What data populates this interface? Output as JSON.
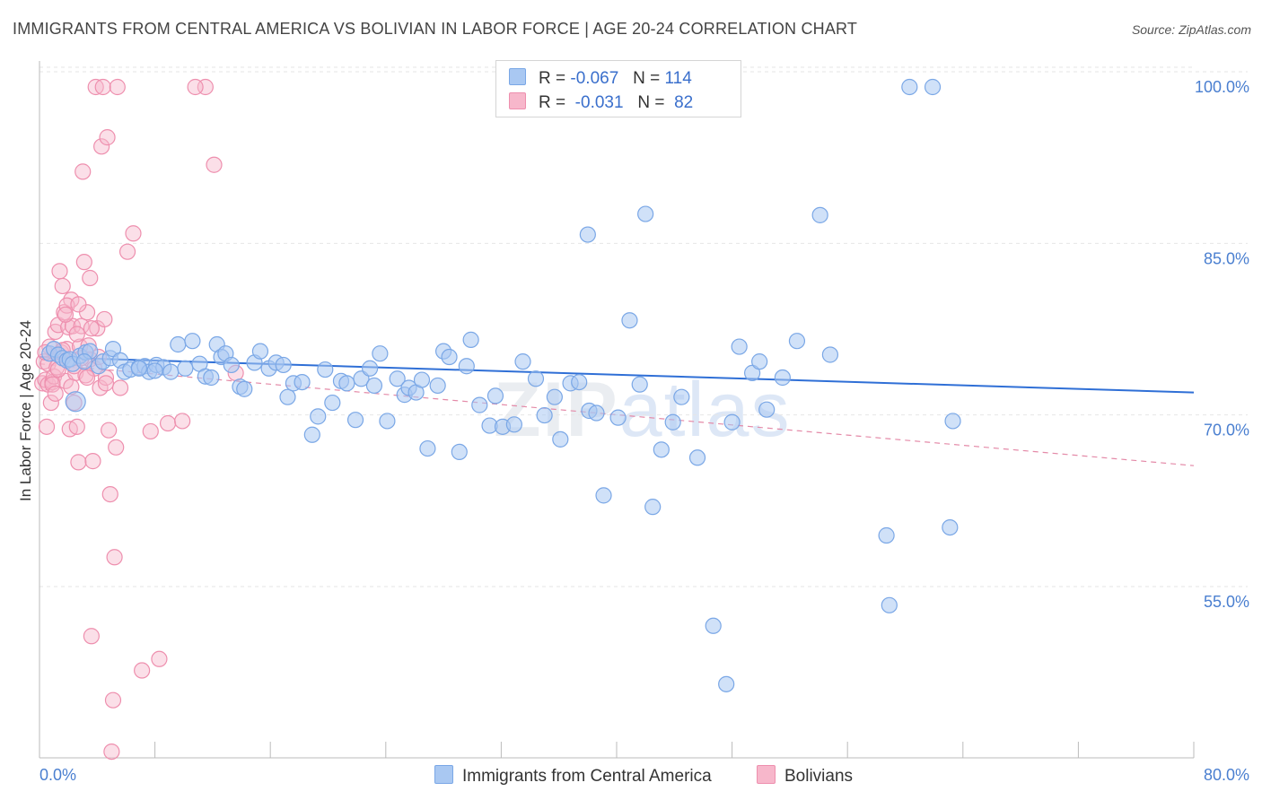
{
  "header": {
    "title": "IMMIGRANTS FROM CENTRAL AMERICA VS BOLIVIAN IN LABOR FORCE | AGE 20-24 CORRELATION CHART",
    "source": "Source: ZipAtlas.com"
  },
  "legend": {
    "rows": [
      {
        "r_label": "R =",
        "r_value": "-0.067",
        "n_label": "N =",
        "n_value": "114",
        "color": "#a9c8f2"
      },
      {
        "r_label": "R =",
        "r_value": "-0.031",
        "n_label": "N =",
        "n_value": "82",
        "color": "#f7b7cb"
      }
    ]
  },
  "bottom_legend": [
    {
      "label": "Immigrants from Central America",
      "color": "#a9c8f2"
    },
    {
      "label": "Bolivians",
      "color": "#f7b7cb"
    }
  ],
  "watermark": {
    "zip": "ZIP",
    "atlas": "atlas"
  },
  "chart_data": {
    "type": "scatter",
    "ylabel": "In Labor Force | Age 20-24",
    "xlim": [
      0,
      80
    ],
    "ylim": [
      40,
      102
    ],
    "x_tick_labels": [
      "0.0%",
      "80.0%"
    ],
    "y_ticks": [
      100,
      85,
      70,
      55
    ],
    "y_tick_labels": [
      "100.0%",
      "85.0%",
      "70.0%",
      "55.0%"
    ],
    "grid": true,
    "legend_position": "top-center",
    "colors": {
      "blue": "#7aa7e6",
      "blue_fill": "#a9c8f2",
      "pink": "#ee8fae",
      "pink_fill": "#f7b7cb",
      "blue_line": "#2f6fd6",
      "pink_line": "#e48aa8"
    },
    "series": [
      {
        "name": "Immigrants from Central America",
        "trend": {
          "x": [
            0,
            80
          ],
          "y": [
            76.4,
            73.3
          ]
        },
        "points": [
          [
            0.7,
            76.7
          ],
          [
            1.0,
            77.1
          ],
          [
            1.3,
            76.6
          ],
          [
            1.6,
            76.3
          ],
          [
            1.9,
            76.1
          ],
          [
            2.1,
            76.2
          ],
          [
            2.3,
            75.8
          ],
          [
            2.5,
            72.5
          ],
          [
            2.8,
            76.5
          ],
          [
            3.2,
            76.8
          ],
          [
            3.5,
            76.9
          ],
          [
            4.1,
            75.6
          ],
          [
            4.4,
            76.0
          ],
          [
            4.9,
            76.3
          ],
          [
            5.1,
            77.1
          ],
          [
            5.6,
            76.1
          ],
          [
            5.9,
            75.1
          ],
          [
            6.3,
            75.3
          ],
          [
            6.9,
            75.5
          ],
          [
            7.3,
            75.6
          ],
          [
            7.6,
            75.1
          ],
          [
            8.1,
            75.7
          ],
          [
            8.6,
            75.5
          ],
          [
            9.1,
            75.1
          ],
          [
            9.6,
            77.5
          ],
          [
            10.1,
            75.4
          ],
          [
            10.6,
            77.8
          ],
          [
            11.1,
            75.8
          ],
          [
            11.5,
            74.7
          ],
          [
            11.9,
            74.6
          ],
          [
            12.3,
            77.5
          ],
          [
            12.6,
            76.4
          ],
          [
            12.9,
            76.7
          ],
          [
            13.3,
            75.7
          ],
          [
            13.9,
            73.8
          ],
          [
            14.2,
            73.6
          ],
          [
            14.9,
            75.9
          ],
          [
            15.3,
            76.9
          ],
          [
            15.9,
            75.4
          ],
          [
            16.4,
            75.9
          ],
          [
            16.9,
            75.7
          ],
          [
            17.2,
            72.9
          ],
          [
            17.6,
            74.1
          ],
          [
            18.2,
            74.2
          ],
          [
            18.9,
            69.6
          ],
          [
            19.3,
            71.2
          ],
          [
            19.8,
            75.3
          ],
          [
            20.3,
            72.4
          ],
          [
            20.9,
            74.3
          ],
          [
            21.3,
            74.1
          ],
          [
            21.9,
            70.9
          ],
          [
            22.3,
            74.5
          ],
          [
            22.9,
            75.4
          ],
          [
            23.2,
            73.9
          ],
          [
            23.6,
            76.7
          ],
          [
            24.1,
            70.8
          ],
          [
            24.8,
            74.5
          ],
          [
            25.3,
            73.1
          ],
          [
            25.6,
            73.7
          ],
          [
            26.1,
            73.3
          ],
          [
            26.5,
            74.4
          ],
          [
            26.9,
            68.4
          ],
          [
            27.6,
            73.9
          ],
          [
            28.0,
            76.9
          ],
          [
            28.4,
            76.4
          ],
          [
            29.1,
            68.1
          ],
          [
            29.6,
            75.6
          ],
          [
            29.9,
            77.9
          ],
          [
            30.5,
            72.2
          ],
          [
            31.2,
            70.4
          ],
          [
            31.6,
            73.0
          ],
          [
            32.1,
            70.3
          ],
          [
            32.9,
            70.5
          ],
          [
            33.5,
            76.0
          ],
          [
            34.4,
            74.5
          ],
          [
            35.0,
            71.3
          ],
          [
            35.7,
            72.9
          ],
          [
            36.1,
            69.2
          ],
          [
            36.8,
            74.1
          ],
          [
            37.4,
            74.2
          ],
          [
            38.0,
            87.1
          ],
          [
            38.1,
            71.7
          ],
          [
            38.6,
            71.5
          ],
          [
            39.1,
            64.3
          ],
          [
            40.1,
            71.1
          ],
          [
            40.9,
            79.6
          ],
          [
            41.6,
            74.0
          ],
          [
            42.0,
            88.9
          ],
          [
            42.5,
            63.3
          ],
          [
            43.1,
            68.3
          ],
          [
            43.9,
            70.7
          ],
          [
            44.5,
            72.9
          ],
          [
            45.0,
            100.1
          ],
          [
            45.6,
            67.6
          ],
          [
            46.7,
            52.9
          ],
          [
            47.6,
            47.8
          ],
          [
            48.0,
            70.7
          ],
          [
            48.5,
            77.3
          ],
          [
            49.4,
            75.0
          ],
          [
            49.9,
            76.0
          ],
          [
            50.4,
            71.8
          ],
          [
            51.5,
            74.6
          ],
          [
            52.5,
            77.8
          ],
          [
            54.1,
            88.8
          ],
          [
            54.8,
            76.6
          ],
          [
            58.7,
            60.8
          ],
          [
            58.9,
            54.7
          ],
          [
            60.3,
            100.0
          ],
          [
            61.9,
            100.0
          ],
          [
            63.1,
            61.5
          ],
          [
            63.3,
            70.8
          ],
          [
            3.1,
            76.0
          ],
          [
            8.0,
            75.2
          ],
          [
            6.9,
            75.4
          ]
        ]
      },
      {
        "name": "Bolivians",
        "trend": {
          "x": [
            0,
            80
          ],
          "y": [
            75.8,
            66.9
          ]
        },
        "points": [
          [
            0.2,
            74.1
          ],
          [
            0.3,
            76.0
          ],
          [
            0.4,
            74.4
          ],
          [
            0.5,
            70.3
          ],
          [
            0.6,
            75.8
          ],
          [
            0.6,
            74.0
          ],
          [
            0.7,
            77.3
          ],
          [
            0.8,
            72.4
          ],
          [
            0.9,
            74.2
          ],
          [
            1.0,
            74.7
          ],
          [
            1.1,
            78.6
          ],
          [
            1.2,
            75.5
          ],
          [
            1.3,
            79.2
          ],
          [
            1.4,
            83.9
          ],
          [
            1.5,
            76.8
          ],
          [
            1.6,
            82.6
          ],
          [
            1.7,
            80.3
          ],
          [
            1.8,
            74.3
          ],
          [
            1.9,
            77.1
          ],
          [
            2.0,
            79.0
          ],
          [
            2.1,
            70.1
          ],
          [
            2.2,
            81.4
          ],
          [
            2.3,
            79.1
          ],
          [
            2.4,
            72.4
          ],
          [
            2.5,
            75.0
          ],
          [
            2.6,
            70.3
          ],
          [
            2.7,
            67.2
          ],
          [
            2.8,
            77.3
          ],
          [
            2.9,
            79.1
          ],
          [
            3.0,
            92.6
          ],
          [
            3.1,
            84.7
          ],
          [
            3.2,
            74.8
          ],
          [
            3.3,
            80.3
          ],
          [
            3.4,
            77.4
          ],
          [
            3.5,
            76.2
          ],
          [
            3.5,
            83.3
          ],
          [
            3.6,
            52.0
          ],
          [
            3.7,
            67.3
          ],
          [
            3.8,
            75.4
          ],
          [
            3.9,
            100.0
          ],
          [
            4.0,
            78.9
          ],
          [
            4.1,
            76.4
          ],
          [
            4.2,
            73.7
          ],
          [
            4.3,
            94.8
          ],
          [
            4.4,
            100.0
          ],
          [
            4.5,
            79.7
          ],
          [
            4.6,
            74.6
          ],
          [
            4.7,
            95.6
          ],
          [
            4.8,
            70.0
          ],
          [
            4.9,
            64.4
          ],
          [
            5.1,
            46.4
          ],
          [
            5.2,
            58.9
          ],
          [
            5.3,
            68.5
          ],
          [
            5.4,
            100.0
          ],
          [
            5.6,
            73.7
          ],
          [
            6.1,
            85.6
          ],
          [
            6.5,
            87.2
          ],
          [
            7.1,
            49.0
          ],
          [
            7.7,
            69.9
          ],
          [
            8.3,
            50.0
          ],
          [
            8.9,
            70.6
          ],
          [
            9.9,
            70.8
          ],
          [
            11.5,
            100.0
          ],
          [
            12.1,
            93.2
          ],
          [
            13.6,
            75.0
          ],
          [
            1.9,
            80.9
          ],
          [
            2.2,
            73.8
          ],
          [
            2.6,
            78.4
          ],
          [
            3.3,
            74.6
          ],
          [
            4.6,
            74.1
          ],
          [
            5.0,
            41.9
          ],
          [
            1.3,
            75.3
          ],
          [
            0.9,
            74.0
          ],
          [
            1.6,
            77.0
          ],
          [
            2.4,
            75.6
          ],
          [
            2.9,
            76.3
          ],
          [
            3.6,
            78.9
          ],
          [
            0.4,
            76.8
          ],
          [
            1.1,
            73.2
          ],
          [
            1.8,
            80.1
          ],
          [
            2.7,
            81.0
          ],
          [
            10.8,
            100.0
          ]
        ]
      }
    ]
  }
}
